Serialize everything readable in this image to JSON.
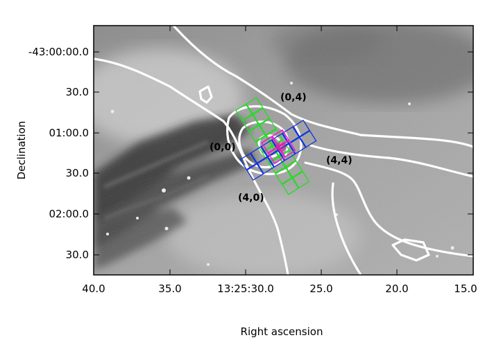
{
  "figure": {
    "x_axis": {
      "label": "Right ascension",
      "ticks": [
        "40.0",
        "35.0",
        "13:25:30.0",
        "25.0",
        "20.0",
        "15.0"
      ]
    },
    "y_axis": {
      "label": "Declination",
      "ticks": [
        "-43:00:00.0",
        "30.0",
        "01:00.0",
        "30.0",
        "02:00.0",
        "30.0"
      ]
    },
    "corner_labels": {
      "top": "(0,4)",
      "left": "(0,0)",
      "right": "(4,4)",
      "bottom": "(4,0)"
    },
    "overlay_colors": {
      "contours": "#ffffff",
      "grid_green": "#22dd22",
      "grid_blue": "#1133dd",
      "grid_magenta": "#ee22cc",
      "image_background": "#9a9a9a"
    }
  }
}
